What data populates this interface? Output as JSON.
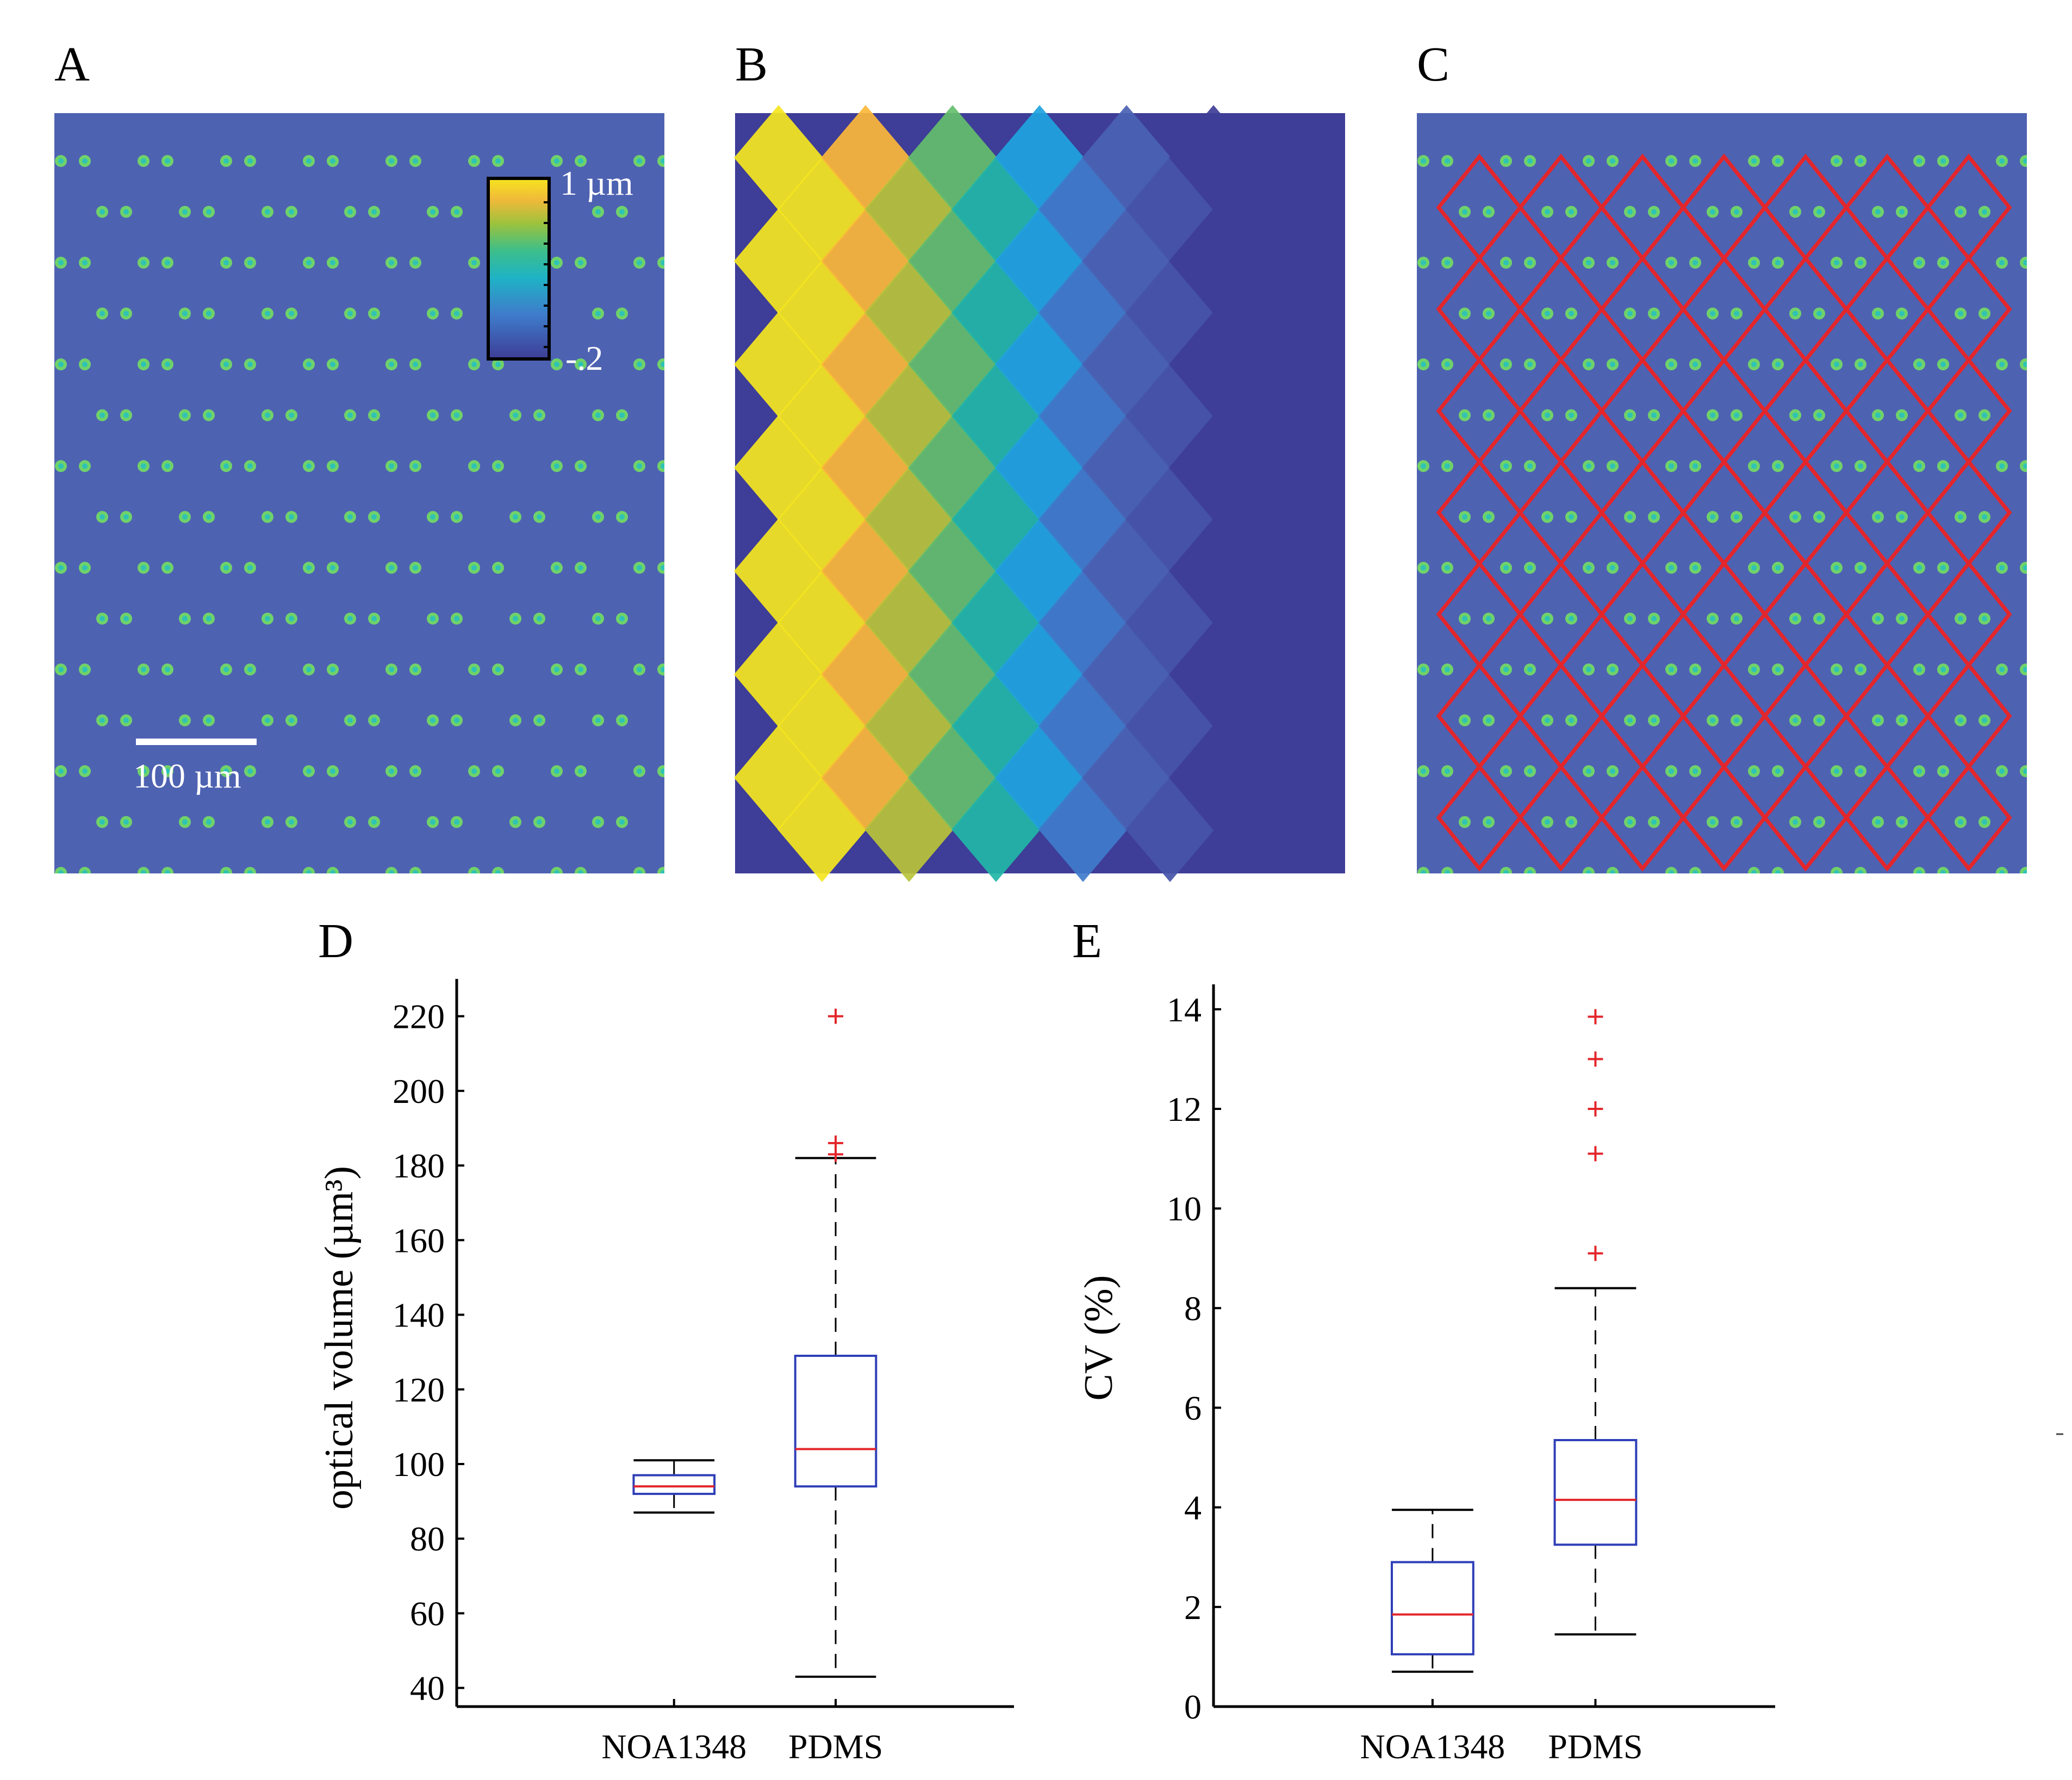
{
  "panel_labels": {
    "a": "A",
    "b": "B",
    "c": "C",
    "d": "D",
    "e": "E"
  },
  "colorbar": {
    "max_label": "1 µm",
    "min_label": "-.2"
  },
  "scalebar": {
    "label": "100 µm"
  },
  "colors": {
    "background_blue": "#4E62B2",
    "dot_green": "#6FD26A",
    "dot_core": "#2EC3B5",
    "grid_red": "#E3262B",
    "box_blue": "#2F3FB7",
    "median_red": "#E3262B",
    "whisker_black": "#000000",
    "outlier_red": "#E3262B",
    "parula": [
      "#F5E61F",
      "#FCB73A",
      "#B8C33A",
      "#64BE6C",
      "#21B6A7",
      "#1FA3DF",
      "#3F7BCB",
      "#4A62B3",
      "#4554A8",
      "#3E3D97"
    ]
  },
  "chart_data": [
    {
      "type": "box",
      "title": "",
      "xlabel": "",
      "ylabel": "optical volume (µm³)",
      "ylim": [
        35,
        230
      ],
      "yticks": [
        40,
        60,
        80,
        100,
        120,
        140,
        160,
        180,
        200,
        220
      ],
      "categories": [
        "NOA1348",
        "PDMS"
      ],
      "boxes": [
        {
          "category": "NOA1348",
          "whisker_low": 87,
          "q1": 92,
          "median": 94,
          "q3": 97,
          "whisker_high": 101,
          "outliers": []
        },
        {
          "category": "PDMS",
          "whisker_low": 43,
          "q1": 94,
          "median": 104,
          "q3": 129,
          "whisker_high": 182,
          "outliers": [
            183,
            186,
            220
          ]
        }
      ]
    },
    {
      "type": "box",
      "title": "",
      "xlabel": "",
      "ylabel": "CV (%)",
      "ylim": [
        0,
        14.5
      ],
      "yticks": [
        0,
        2,
        4,
        6,
        8,
        10,
        12,
        14
      ],
      "categories": [
        "NOA1348",
        "PDMS"
      ],
      "boxes": [
        {
          "category": "NOA1348",
          "whisker_low": 0.7,
          "q1": 1.05,
          "median": 1.85,
          "q3": 2.9,
          "whisker_high": 3.95,
          "outliers": []
        },
        {
          "category": "PDMS",
          "whisker_low": 1.45,
          "q1": 3.25,
          "median": 4.15,
          "q3": 5.35,
          "whisker_high": 8.4,
          "outliers": [
            9.1,
            11.1,
            12.0,
            13.0,
            13.85
          ]
        }
      ]
    }
  ]
}
